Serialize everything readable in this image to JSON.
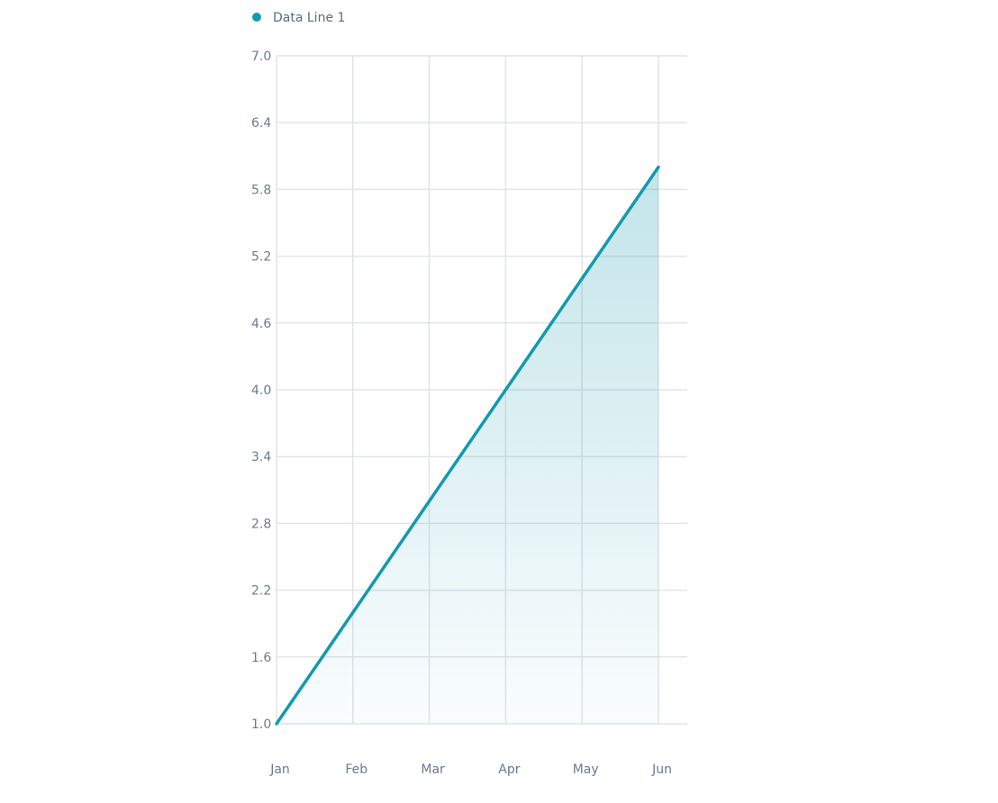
{
  "chart_data": {
    "type": "area",
    "categories": [
      "Jan",
      "Feb",
      "Mar",
      "Apr",
      "May",
      "Jun"
    ],
    "series": [
      {
        "name": "Data Line 1",
        "values": [
          1.0,
          2.0,
          3.0,
          4.0,
          5.0,
          6.0
        ]
      }
    ],
    "ylim": [
      1.0,
      7.0
    ],
    "yticks": [
      "1.0",
      "1.6",
      "2.2",
      "2.8",
      "3.4",
      "4.0",
      "4.6",
      "5.2",
      "5.8",
      "6.4",
      "7.0"
    ],
    "grid": true,
    "legend_position": "top-left",
    "colors": {
      "line": "#1499ad",
      "fill": "#1499ad",
      "grid": "#e1e4e8",
      "text": "#6b7a8f"
    }
  }
}
